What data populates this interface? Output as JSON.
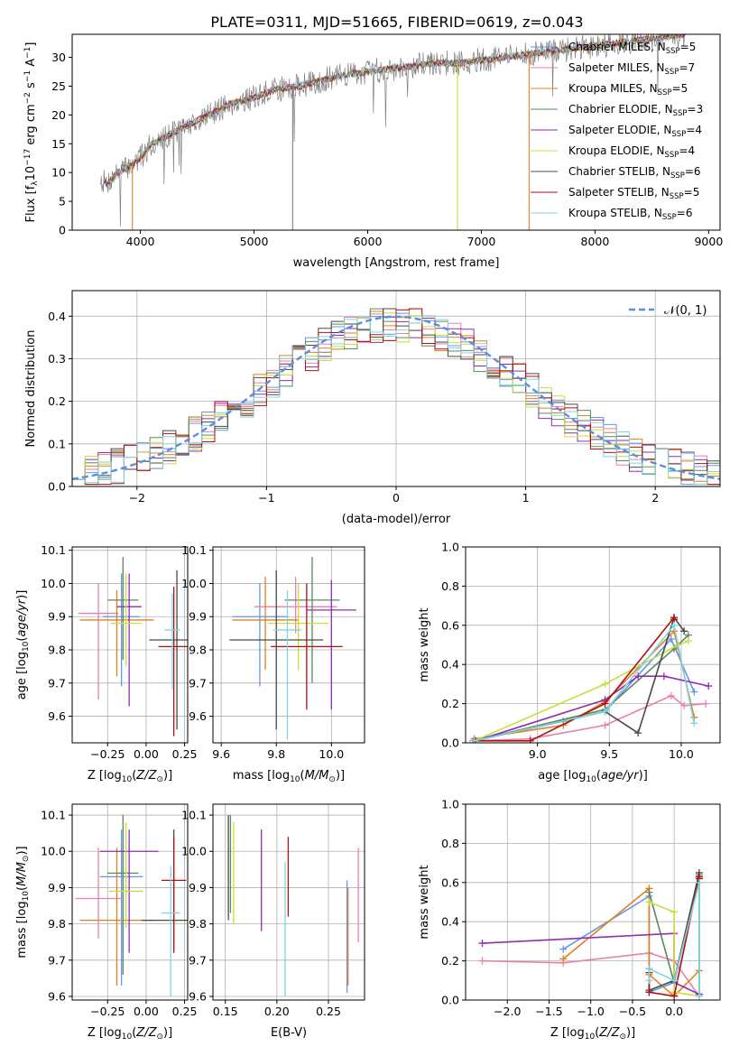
{
  "title": "PLATE=0311, MJD=51665, FIBERID=0619, z=0.043",
  "colors": [
    "#6495ed",
    "#e87fb0",
    "#e0801f",
    "#5a8a5a",
    "#8e2fb0",
    "#c8dd3a",
    "#4a4a4a",
    "#b01010",
    "#7fd6e0"
  ],
  "chart_data": [
    {
      "type": "line",
      "id": "spectrum",
      "xlabel": "wavelength [Angstrom, rest frame]",
      "ylabel": "Flux [f_λ 10^-17 erg cm^-2 s^-1 A^-1]",
      "xlim": [
        3400,
        9100
      ],
      "ylim": [
        0,
        34
      ],
      "xticks": [
        4000,
        5000,
        6000,
        7000,
        8000,
        9000
      ],
      "yticks": [
        0,
        5,
        10,
        15,
        20,
        25,
        30
      ],
      "grid": false,
      "legend_position": "right",
      "continuum": {
        "x": [
          3650,
          3700,
          3800,
          3900,
          4000,
          4100,
          4200,
          4300,
          4400,
          4500,
          4600,
          4700,
          4800,
          4900,
          5000,
          5200,
          5400,
          5600,
          5800,
          6000,
          6200,
          6400,
          6600,
          6800,
          7000,
          7200,
          7400,
          7600,
          7800,
          8000,
          8200,
          8400,
          8600,
          8800
        ],
        "y": [
          9,
          8,
          10,
          11,
          12.5,
          15,
          16,
          17,
          18,
          19,
          20,
          21,
          22,
          22.5,
          23,
          24.5,
          25,
          26,
          27,
          27.5,
          28,
          28.5,
          29,
          29,
          29.5,
          30,
          30.5,
          31,
          31.5,
          32,
          32.5,
          33,
          33.5,
          34
        ]
      },
      "data_noise": 2.2,
      "model_noise": 0.6,
      "dropouts": [
        {
          "x": 3930,
          "series": 2
        },
        {
          "x": 6790,
          "series": 5
        },
        {
          "x": 7420,
          "series": 2
        },
        {
          "x": 5340,
          "series": -1
        }
      ],
      "series": [
        {
          "name": "Chabrier MILES, N_SSP=5",
          "label_main": "Chabrier MILES, N",
          "label_sub": "SSP",
          "label_tail": "=5"
        },
        {
          "name": "Salpeter MILES, N_SSP=7",
          "label_main": "Salpeter MILES, N",
          "label_sub": "SSP",
          "label_tail": "=7"
        },
        {
          "name": "Kroupa MILES, N_SSP=5",
          "label_main": "Kroupa MILES, N",
          "label_sub": "SSP",
          "label_tail": "=5"
        },
        {
          "name": "Chabrier ELODIE, N_SSP=3",
          "label_main": "Chabrier ELODIE, N",
          "label_sub": "SSP",
          "label_tail": "=3"
        },
        {
          "name": "Salpeter ELODIE, N_SSP=4",
          "label_main": "Salpeter ELODIE, N",
          "label_sub": "SSP",
          "label_tail": "=4"
        },
        {
          "name": "Kroupa ELODIE, N_SSP=4",
          "label_main": "Kroupa ELODIE, N",
          "label_sub": "SSP",
          "label_tail": "=4"
        },
        {
          "name": "Chabrier STELIB, N_SSP=6",
          "label_main": "Chabrier STELIB, N",
          "label_sub": "SSP",
          "label_tail": "=6"
        },
        {
          "name": "Salpeter STELIB, N_SSP=5",
          "label_main": "Salpeter STELIB, N",
          "label_sub": "SSP",
          "label_tail": "=5"
        },
        {
          "name": "Kroupa STELIB, N_SSP=6",
          "label_main": "Kroupa STELIB, N",
          "label_sub": "SSP",
          "label_tail": "=6"
        }
      ]
    },
    {
      "type": "line",
      "id": "residuals",
      "xlabel": "(data-model)/error",
      "ylabel": "Normed distribution",
      "xlim": [
        -2.5,
        2.5
      ],
      "ylim": [
        0,
        0.46
      ],
      "xticks": [
        -2,
        -1,
        0,
        1,
        2
      ],
      "yticks": [
        0.0,
        0.1,
        0.2,
        0.3,
        0.4
      ],
      "grid": true,
      "legend": "𝒩(0, 1)",
      "legend_position": "top-right",
      "bin_width": 0.1
    },
    {
      "type": "scatter",
      "id": "z-age",
      "xlabel": "Z [log10(Z/Z⊙)]",
      "ylabel": "age [log10(age/yr)]",
      "xlim": [
        -0.48,
        0.27
      ],
      "ylim": [
        9.52,
        10.11
      ],
      "xticks": [
        -0.25,
        0.0,
        0.25
      ],
      "yticks": [
        9.6,
        9.7,
        9.8,
        9.9,
        10.0,
        10.1
      ],
      "grid": true,
      "points": [
        {
          "x": -0.16,
          "y": 9.9,
          "xerr": 0.12,
          "yerr": [
            0.21,
            0.13
          ]
        },
        {
          "x": -0.31,
          "y": 9.91,
          "xerr": 0.13,
          "yerr": [
            0.26,
            0.09
          ]
        },
        {
          "x": -0.19,
          "y": 9.89,
          "xerr": 0.24,
          "yerr": [
            0.17,
            0.09
          ]
        },
        {
          "x": -0.15,
          "y": 9.95,
          "xerr": 0.1,
          "yerr": [
            0.18,
            0.13
          ]
        },
        {
          "x": -0.11,
          "y": 9.93,
          "xerr": 0.08,
          "yerr": [
            0.3,
            0.1
          ]
        },
        {
          "x": -0.13,
          "y": 9.88,
          "xerr": 0.1,
          "yerr": [
            0.13,
            0.15
          ]
        },
        {
          "x": 0.2,
          "y": 9.83,
          "xerr": 0.18,
          "yerr": [
            0.27,
            0.21
          ]
        },
        {
          "x": 0.18,
          "y": 9.81,
          "xerr": 0.1,
          "yerr": [
            0.27,
            0.18
          ]
        },
        {
          "x": 0.17,
          "y": 9.86,
          "xerr": 0.05,
          "yerr": [
            0.18,
            0.11
          ]
        }
      ]
    },
    {
      "type": "scatter",
      "id": "mass-age",
      "xlabel": "mass [log10(M/M⊙)]",
      "ylabel": "",
      "xlim": [
        9.57,
        10.12
      ],
      "ylim": [
        9.52,
        10.11
      ],
      "xticks": [
        9.6,
        9.8,
        10.0
      ],
      "yticks": [
        9.6,
        9.7,
        9.8,
        9.9,
        10.0,
        10.1
      ],
      "grid": true,
      "points": [
        {
          "x": 9.74,
          "y": 9.9,
          "xerr": 0.1,
          "yerr": [
            0.21,
            0.1
          ]
        },
        {
          "x": 9.87,
          "y": 9.93,
          "xerr": 0.15,
          "yerr": [
            0.08,
            0.09
          ]
        },
        {
          "x": 9.76,
          "y": 9.89,
          "xerr": 0.12,
          "yerr": [
            0.15,
            0.13
          ]
        },
        {
          "x": 9.93,
          "y": 9.95,
          "xerr": 0.1,
          "yerr": [
            0.25,
            0.13
          ]
        },
        {
          "x": 10.0,
          "y": 9.92,
          "xerr": 0.09,
          "yerr": [
            0.3,
            0.09
          ]
        },
        {
          "x": 9.88,
          "y": 9.88,
          "xerr": 0.11,
          "yerr": [
            0.14,
            0.12
          ]
        },
        {
          "x": 9.8,
          "y": 9.83,
          "xerr": 0.17,
          "yerr": [
            0.27,
            0.21
          ]
        },
        {
          "x": 9.91,
          "y": 9.81,
          "xerr": 0.13,
          "yerr": [
            0.19,
            0.19
          ]
        },
        {
          "x": 9.84,
          "y": 9.86,
          "xerr": 0.05,
          "yerr": [
            0.33,
            0.12
          ]
        }
      ]
    },
    {
      "type": "line",
      "id": "age-weight",
      "xlabel": "age [log10(age/yr)]",
      "ylabel": "mass weight",
      "xlim": [
        8.5,
        10.27
      ],
      "ylim": [
        0,
        1.0
      ],
      "xticks": [
        9.0,
        9.5,
        10.0
      ],
      "yticks": [
        0.0,
        0.2,
        0.4,
        0.6,
        0.8,
        1.0
      ],
      "grid": true,
      "series": [
        {
          "x": [
            8.56,
            9.18,
            9.47,
            9.93,
            10.09
          ],
          "y": [
            0.01,
            0.11,
            0.16,
            0.53,
            0.26
          ]
        },
        {
          "x": [
            8.55,
            8.95,
            9.47,
            9.93,
            10.02,
            10.17
          ],
          "y": [
            0.01,
            0.02,
            0.09,
            0.24,
            0.19,
            0.2
          ]
        },
        {
          "x": [
            8.56,
            9.18,
            9.47,
            9.95,
            10.09
          ],
          "y": [
            0.02,
            0.09,
            0.21,
            0.57,
            0.13
          ]
        },
        {
          "x": [
            8.56,
            9.47,
            9.95,
            10.05
          ],
          "y": [
            0.01,
            0.17,
            0.48,
            0.55
          ]
        },
        {
          "x": [
            8.57,
            9.47,
            9.7,
            9.88,
            10.19
          ],
          "y": [
            0.01,
            0.22,
            0.34,
            0.34,
            0.29
          ]
        },
        {
          "x": [
            8.56,
            9.47,
            9.98,
            10.05
          ],
          "y": [
            0.01,
            0.3,
            0.5,
            0.52
          ]
        },
        {
          "x": [
            8.56,
            9.47,
            9.7,
            9.95,
            10.02
          ],
          "y": [
            0.01,
            0.16,
            0.05,
            0.64,
            0.57
          ]
        },
        {
          "x": [
            8.56,
            8.95,
            9.47,
            9.95,
            9.95
          ],
          "y": [
            0.01,
            0.01,
            0.2,
            0.64,
            0.63
          ]
        },
        {
          "x": [
            8.56,
            9.47,
            9.95,
            10.09
          ],
          "y": [
            0.01,
            0.16,
            0.6,
            0.1
          ]
        }
      ]
    },
    {
      "type": "scatter",
      "id": "z-mass",
      "xlabel": "Z [log10(Z/Z⊙)]",
      "ylabel": "mass [log10(M/M⊙)]",
      "xlim": [
        -0.48,
        0.27
      ],
      "ylim": [
        9.59,
        10.13
      ],
      "xticks": [
        -0.25,
        0.0,
        0.25
      ],
      "yticks": [
        9.6,
        9.7,
        9.8,
        9.9,
        10.0,
        10.1
      ],
      "grid": true,
      "points": [
        {
          "x": -0.16,
          "y": 9.93,
          "xerr": 0.14,
          "yerr": [
            0.3,
            0.13
          ]
        },
        {
          "x": -0.31,
          "y": 9.87,
          "xerr": 0.15,
          "yerr": [
            0.11,
            0.14
          ]
        },
        {
          "x": -0.19,
          "y": 9.81,
          "xerr": 0.24,
          "yerr": [
            0.18,
            0.2
          ]
        },
        {
          "x": -0.15,
          "y": 9.94,
          "xerr": 0.1,
          "yerr": [
            0.28,
            0.16
          ]
        },
        {
          "x": -0.11,
          "y": 10.0,
          "xerr": 0.19,
          "yerr": [
            0.28,
            0.06
          ]
        },
        {
          "x": -0.13,
          "y": 9.89,
          "xerr": 0.11,
          "yerr": [
            0.1,
            0.19
          ]
        },
        {
          "x": 0.18,
          "y": 9.81,
          "xerr": 0.21,
          "yerr": [
            0.08,
            0.25
          ]
        },
        {
          "x": 0.18,
          "y": 9.92,
          "xerr": 0.08,
          "yerr": [
            0.2,
            0.12
          ]
        },
        {
          "x": 0.16,
          "y": 9.83,
          "xerr": 0.06,
          "yerr": [
            0.23,
            0.13
          ]
        }
      ]
    },
    {
      "type": "scatter",
      "id": "ebv-mass",
      "xlabel": "E(B-V)",
      "ylabel": "",
      "xlim": [
        0.138,
        0.285
      ],
      "ylim": [
        9.59,
        10.13
      ],
      "xticks": [
        0.15,
        0.2,
        0.25
      ],
      "yticks": [
        9.6,
        9.7,
        9.8,
        9.9,
        10.0,
        10.1
      ],
      "grid": true,
      "points": [
        {
          "x": 0.268,
          "y": 9.82,
          "xerr": 0,
          "yerr": [
            0.21,
            0.1
          ]
        },
        {
          "x": 0.279,
          "y": 9.88,
          "xerr": 0,
          "yerr": [
            0.13,
            0.13
          ]
        },
        {
          "x": 0.269,
          "y": 9.78,
          "xerr": 0,
          "yerr": [
            0.15,
            0.12
          ]
        },
        {
          "x": 0.155,
          "y": 9.95,
          "xerr": 0,
          "yerr": [
            0.12,
            0.15
          ]
        },
        {
          "x": 0.185,
          "y": 9.92,
          "xerr": 0,
          "yerr": [
            0.14,
            0.14
          ]
        },
        {
          "x": 0.158,
          "y": 9.94,
          "xerr": 0,
          "yerr": [
            0.14,
            0.14
          ]
        },
        {
          "x": 0.153,
          "y": 9.93,
          "xerr": 0,
          "yerr": [
            0.12,
            0.17
          ]
        },
        {
          "x": 0.211,
          "y": 9.95,
          "xerr": 0,
          "yerr": [
            0.13,
            0.09
          ]
        },
        {
          "x": 0.208,
          "y": 9.8,
          "xerr": 0,
          "yerr": [
            0.2,
            0.17
          ]
        }
      ]
    },
    {
      "type": "line",
      "id": "z-weight",
      "xlabel": "Z [log10(Z/Z⊙)]",
      "ylabel": "mass weight",
      "xlim": [
        -2.5,
        0.55
      ],
      "ylim": [
        0,
        1.0
      ],
      "xticks": [
        -2.0,
        -1.5,
        -1.0,
        -0.5,
        0.0
      ],
      "yticks": [
        0.0,
        0.2,
        0.4,
        0.6,
        0.8,
        1.0
      ],
      "grid": true,
      "series": [
        {
          "x": [
            -1.33,
            -0.3,
            -0.3,
            0.0,
            0.3,
            0.3
          ],
          "y": [
            0.26,
            0.53,
            0.04,
            0.09,
            0.62,
            0.03
          ]
        },
        {
          "x": [
            -2.3,
            -1.33,
            -0.3,
            0.0,
            0.3
          ],
          "y": [
            0.2,
            0.19,
            0.24,
            0.2,
            0.02
          ]
        },
        {
          "x": [
            -1.33,
            -0.3,
            -0.3,
            0.0,
            0.3
          ],
          "y": [
            0.21,
            0.57,
            0.13,
            0.02,
            0.15
          ]
        },
        {
          "x": [
            -0.3,
            0.0,
            0.3,
            0.3
          ],
          "y": [
            0.55,
            0.09,
            0.64,
            0.03
          ]
        },
        {
          "x": [
            -2.3,
            0.0,
            0.0,
            0.3
          ],
          "y": [
            0.29,
            0.34,
            0.09,
            0.03
          ]
        },
        {
          "x": [
            -0.3,
            0.0,
            0.0,
            0.3
          ],
          "y": [
            0.5,
            0.45,
            0.04,
            0.02
          ]
        },
        {
          "x": [
            -0.3,
            -0.3,
            0.0,
            0.3
          ],
          "y": [
            0.16,
            0.05,
            0.1,
            0.65
          ]
        },
        {
          "x": [
            -0.3,
            -0.3,
            0.0,
            0.3,
            0.3
          ],
          "y": [
            0.14,
            0.04,
            0.02,
            0.63,
            0.62
          ]
        },
        {
          "x": [
            -0.3,
            -0.3,
            0.0,
            0.3,
            0.3
          ],
          "y": [
            0.1,
            0.16,
            0.1,
            0.6,
            0.02
          ]
        }
      ]
    }
  ]
}
